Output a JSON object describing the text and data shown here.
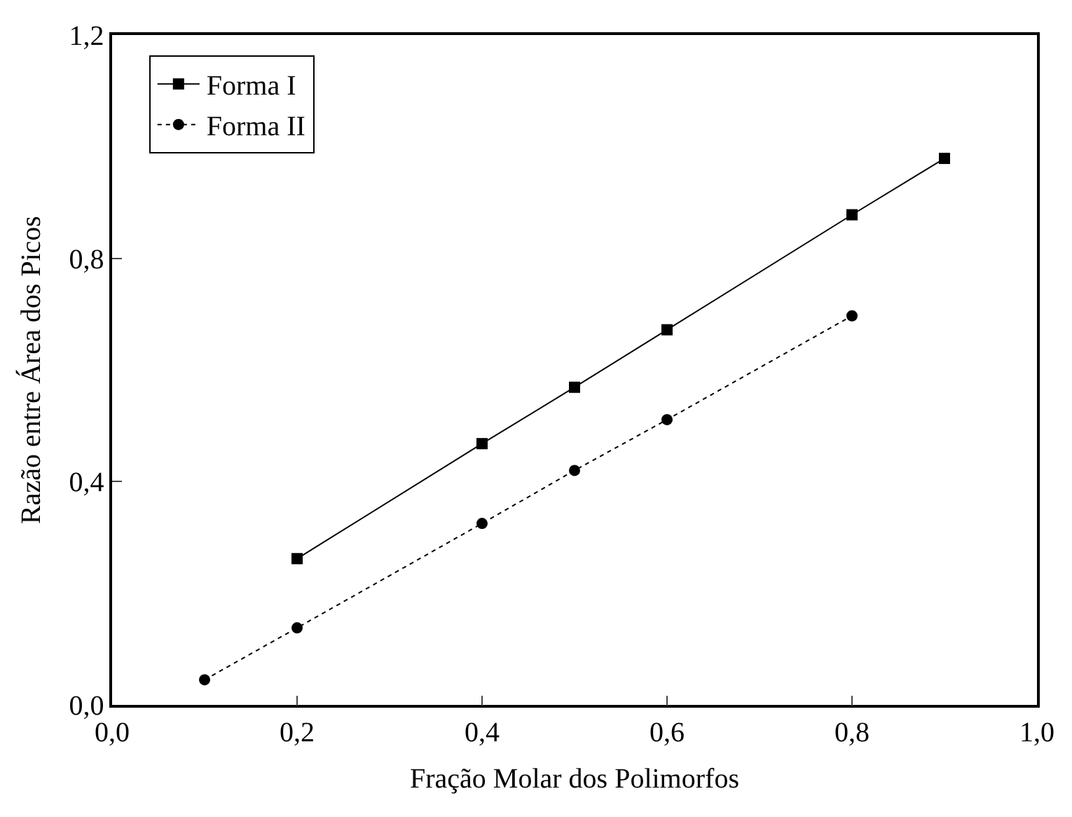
{
  "chart_data": {
    "type": "line",
    "xlabel": "Fração Molar dos Polimorfos",
    "ylabel": "Razão entre Área dos Picos",
    "xlim": [
      0.0,
      1.0
    ],
    "xticks": [
      {
        "value": 0.0,
        "label": "0,0"
      },
      {
        "value": 0.2,
        "label": "0,2"
      },
      {
        "value": 0.4,
        "label": "0,4"
      },
      {
        "value": 0.6,
        "label": "0,6"
      },
      {
        "value": 0.8,
        "label": "0,8"
      },
      {
        "value": 1.0,
        "label": "1,0"
      }
    ],
    "ylim": [
      0.0,
      1.2
    ],
    "yticks": [
      {
        "value": 0.0,
        "label": "0,0"
      },
      {
        "value": 0.4,
        "label": "0,4"
      },
      {
        "value": 0.8,
        "label": "0,8"
      },
      {
        "value": 1.2,
        "label": "1,2"
      }
    ],
    "legend": "top left",
    "series": [
      {
        "name": "Forma I",
        "color": "#000000",
        "marker": "square",
        "line_style": "solid",
        "x": [
          0.2,
          0.4,
          0.5,
          0.6,
          0.8,
          0.9
        ],
        "values": [
          0.262,
          0.468,
          0.569,
          0.672,
          0.878,
          0.979
        ]
      },
      {
        "name": "Forma II",
        "color": "#000000",
        "marker": "circle",
        "line_style": "dotted",
        "x": [
          0.1,
          0.2,
          0.4,
          0.5,
          0.6,
          0.8
        ],
        "values": [
          0.045,
          0.138,
          0.325,
          0.42,
          0.511,
          0.697
        ]
      }
    ]
  }
}
